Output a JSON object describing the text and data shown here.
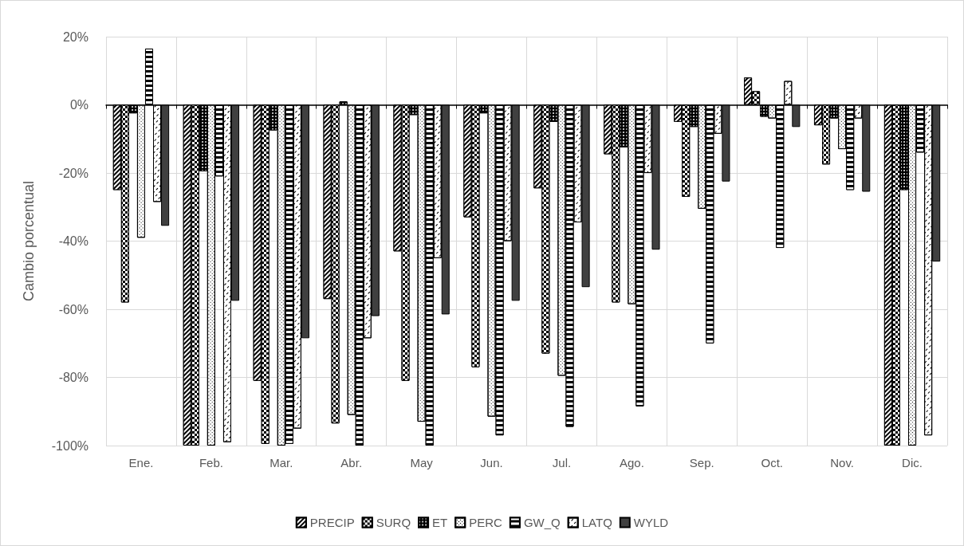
{
  "chart_data": {
    "type": "bar",
    "ylabel": "Cambio porcentual",
    "categories": [
      "Ene.",
      "Feb.",
      "Mar.",
      "Abr.",
      "May",
      "Jun.",
      "Jul.",
      "Ago.",
      "Sep.",
      "Oct.",
      "Nov.",
      "Dic."
    ],
    "series": [
      {
        "name": "PRECIP",
        "color": "#000000",
        "values": [
          -25,
          -100,
          -81,
          -57,
          -43,
          -33,
          -24.5,
          -14.5,
          -5,
          8,
          -6,
          -100
        ]
      },
      {
        "name": "SURQ",
        "color": "#000000",
        "values": [
          -58,
          -100,
          -99.5,
          -93.5,
          -81,
          -77,
          -73,
          -58,
          -27,
          4,
          -17.5,
          -100
        ]
      },
      {
        "name": "ET",
        "color": "#000000",
        "values": [
          -2.5,
          -19.5,
          -7.5,
          1,
          -3,
          -2.5,
          -5,
          -12.5,
          -6.5,
          -3.5,
          -4,
          -25
        ]
      },
      {
        "name": "PERC",
        "color": "#ffffff",
        "values": [
          -39,
          -100,
          -100,
          -91,
          -93,
          -91.5,
          -79.5,
          -58.5,
          -30.5,
          -4,
          -13,
          -100
        ]
      },
      {
        "name": "GW_Q",
        "color": "#000000",
        "values": [
          16.5,
          -21,
          -99.5,
          -100,
          -100,
          -97,
          -94.5,
          -88.5,
          -70,
          -42,
          -25,
          -14
        ]
      },
      {
        "name": "LATQ",
        "color": "#ffffff",
        "values": [
          -28.5,
          -99,
          -95,
          -68.5,
          -45,
          -40,
          -34.5,
          -20,
          -8.5,
          7,
          -4,
          -97
        ]
      },
      {
        "name": "WYLD",
        "color": "#404040",
        "values": [
          -35.5,
          -57.5,
          -68.5,
          -62,
          -61.5,
          -57.5,
          -53.5,
          -42.5,
          -22.5,
          -6.5,
          -25.5,
          -46
        ]
      }
    ],
    "ylim": [
      -100,
      20
    ],
    "yticks": [
      {
        "value": -100,
        "label": "-100%"
      },
      {
        "value": -80,
        "label": "-80%"
      },
      {
        "value": -60,
        "label": "-60%"
      },
      {
        "value": -40,
        "label": "-40%"
      },
      {
        "value": -20,
        "label": "-20%"
      },
      {
        "value": 0,
        "label": "0%"
      },
      {
        "value": 20,
        "label": "20%"
      }
    ],
    "grid": true,
    "legend": "bottom"
  }
}
